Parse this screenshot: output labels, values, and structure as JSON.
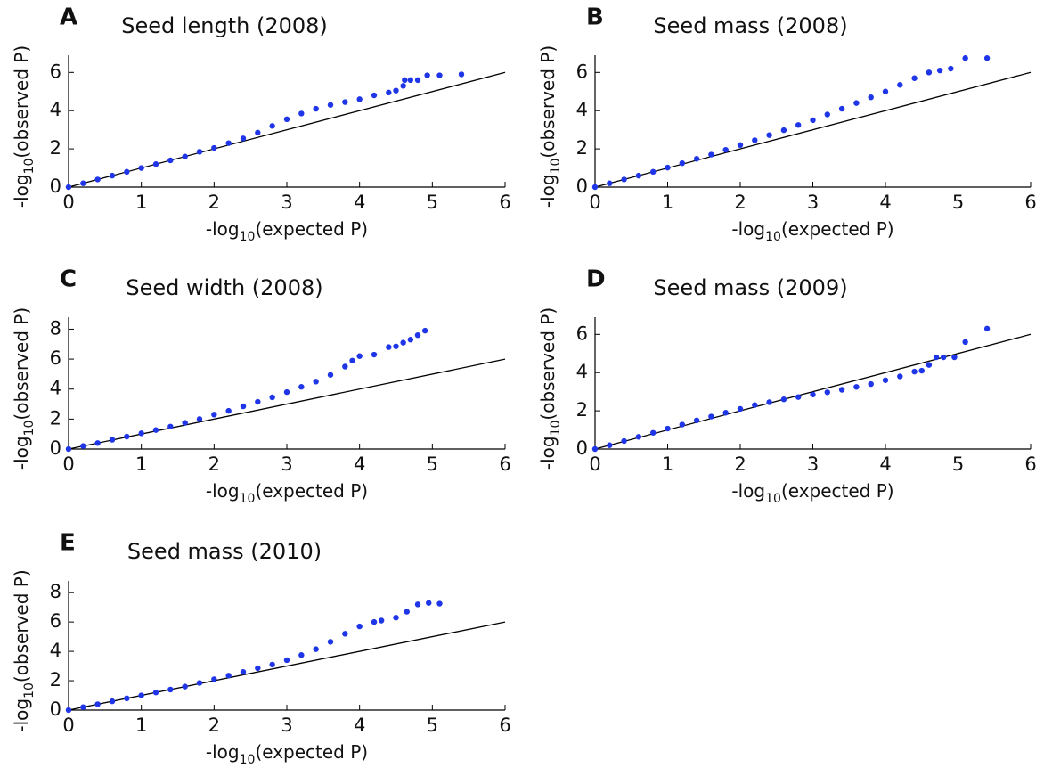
{
  "chart_data": [
    {
      "type": "scatter",
      "panel": "A",
      "title": "Seed length (2008)",
      "xlabel": [
        "-log",
        "10",
        "(expected P)"
      ],
      "ylabel": [
        "-log",
        "10",
        "(observed P)"
      ],
      "color": "#1f35e8",
      "identity_line": true,
      "xlim": [
        0,
        6
      ],
      "ylim": [
        0,
        6.9
      ],
      "xticks": [
        0,
        1,
        2,
        3,
        4,
        5,
        6
      ],
      "yticks": [
        0,
        2,
        4,
        6
      ],
      "x": [
        0,
        0.2,
        0.4,
        0.6,
        0.8,
        1,
        1.2,
        1.4,
        1.6,
        1.8,
        2,
        2.2,
        2.4,
        2.6,
        2.8,
        3,
        3.2,
        3.4,
        3.6,
        3.8,
        4,
        4.2,
        4.4,
        4.5,
        4.6,
        4.62,
        4.7,
        4.8,
        4.93,
        5.1,
        5.4
      ],
      "y": [
        0,
        0.2,
        0.4,
        0.6,
        0.8,
        1,
        1.2,
        1.4,
        1.6,
        1.85,
        2.05,
        2.3,
        2.55,
        2.85,
        3.2,
        3.55,
        3.85,
        4.1,
        4.3,
        4.45,
        4.6,
        4.8,
        4.95,
        5.05,
        5.3,
        5.6,
        5.6,
        5.6,
        5.85,
        5.85,
        5.9
      ]
    },
    {
      "type": "scatter",
      "panel": "B",
      "title": "Seed mass (2008)",
      "xlabel": [
        "-log",
        "10",
        "(expected P)"
      ],
      "ylabel": [
        "-log",
        "10",
        "(observed P)"
      ],
      "color": "#1f35e8",
      "identity_line": true,
      "xlim": [
        0,
        6
      ],
      "ylim": [
        0,
        6.9
      ],
      "xticks": [
        0,
        1,
        2,
        3,
        4,
        5,
        6
      ],
      "yticks": [
        0,
        2,
        4,
        6
      ],
      "x": [
        0,
        0.2,
        0.4,
        0.6,
        0.8,
        1,
        1.2,
        1.4,
        1.6,
        1.8,
        2,
        2.2,
        2.4,
        2.6,
        2.8,
        3,
        3.2,
        3.4,
        3.6,
        3.8,
        4,
        4.2,
        4.4,
        4.6,
        4.75,
        4.9,
        5.1,
        5.4
      ],
      "y": [
        0,
        0.2,
        0.4,
        0.6,
        0.8,
        1.02,
        1.25,
        1.48,
        1.7,
        1.95,
        2.2,
        2.45,
        2.72,
        2.98,
        3.25,
        3.5,
        3.8,
        4.1,
        4.4,
        4.7,
        5.0,
        5.35,
        5.7,
        6.0,
        6.1,
        6.2,
        6.75,
        6.75
      ]
    },
    {
      "type": "scatter",
      "panel": "C",
      "title": "Seed width (2008)",
      "xlabel": [
        "-log",
        "10",
        "(expected P)"
      ],
      "ylabel": [
        "-log",
        "10",
        "(observed P)"
      ],
      "color": "#1f35e8",
      "identity_line": true,
      "xlim": [
        0,
        6
      ],
      "ylim": [
        0,
        8.8
      ],
      "xticks": [
        0,
        1,
        2,
        3,
        4,
        5,
        6
      ],
      "yticks": [
        0,
        2,
        4,
        6,
        8
      ],
      "x": [
        0,
        0.2,
        0.4,
        0.6,
        0.8,
        1,
        1.2,
        1.4,
        1.6,
        1.8,
        2,
        2.2,
        2.4,
        2.6,
        2.8,
        3,
        3.2,
        3.4,
        3.6,
        3.8,
        3.9,
        4,
        4.2,
        4.4,
        4.5,
        4.6,
        4.7,
        4.8,
        4.9
      ],
      "y": [
        0,
        0.2,
        0.4,
        0.62,
        0.83,
        1.05,
        1.27,
        1.5,
        1.75,
        2.0,
        2.3,
        2.55,
        2.85,
        3.15,
        3.45,
        3.8,
        4.15,
        4.5,
        4.95,
        5.5,
        5.9,
        6.2,
        6.3,
        6.8,
        6.85,
        7.1,
        7.3,
        7.6,
        7.9
      ]
    },
    {
      "type": "scatter",
      "panel": "D",
      "title": "Seed mass (2009)",
      "xlabel": [
        "-log",
        "10",
        "(expected P)"
      ],
      "ylabel": [
        "-log",
        "10",
        "(observed P)"
      ],
      "color": "#1f35e8",
      "identity_line": true,
      "xlim": [
        0,
        6
      ],
      "ylim": [
        0,
        6.9
      ],
      "xticks": [
        0,
        1,
        2,
        3,
        4,
        5,
        6
      ],
      "yticks": [
        0,
        2,
        4,
        6
      ],
      "x": [
        0,
        0.2,
        0.4,
        0.6,
        0.8,
        1,
        1.2,
        1.4,
        1.6,
        1.8,
        2,
        2.2,
        2.4,
        2.6,
        2.8,
        3,
        3.2,
        3.4,
        3.6,
        3.8,
        4,
        4.2,
        4.4,
        4.5,
        4.6,
        4.7,
        4.8,
        4.95,
        5.1,
        5.4
      ],
      "y": [
        0,
        0.2,
        0.42,
        0.64,
        0.85,
        1.07,
        1.28,
        1.5,
        1.7,
        1.9,
        2.1,
        2.3,
        2.45,
        2.6,
        2.72,
        2.85,
        2.97,
        3.1,
        3.25,
        3.4,
        3.6,
        3.8,
        4.05,
        4.1,
        4.4,
        4.8,
        4.8,
        4.8,
        5.6,
        6.3
      ]
    },
    {
      "type": "scatter",
      "panel": "E",
      "title": "Seed mass (2010)",
      "xlabel": [
        "-log",
        "10",
        "(expected P)"
      ],
      "ylabel": [
        "-log",
        "10",
        "(observed P)"
      ],
      "color": "#1f35e8",
      "identity_line": true,
      "xlim": [
        0,
        6
      ],
      "ylim": [
        0,
        8.8
      ],
      "xticks": [
        0,
        1,
        2,
        3,
        4,
        5,
        6
      ],
      "yticks": [
        0,
        2,
        4,
        6,
        8
      ],
      "x": [
        0,
        0.2,
        0.4,
        0.6,
        0.8,
        1,
        1.2,
        1.4,
        1.6,
        1.8,
        2,
        2.2,
        2.4,
        2.6,
        2.8,
        3,
        3.2,
        3.4,
        3.6,
        3.8,
        4,
        4.2,
        4.3,
        4.5,
        4.65,
        4.8,
        4.95,
        5.1
      ],
      "y": [
        0,
        0.2,
        0.4,
        0.6,
        0.8,
        1.0,
        1.2,
        1.4,
        1.6,
        1.85,
        2.1,
        2.35,
        2.6,
        2.85,
        3.1,
        3.4,
        3.75,
        4.15,
        4.65,
        5.2,
        5.7,
        6.0,
        6.1,
        6.3,
        6.7,
        7.2,
        7.3,
        7.25
      ]
    }
  ]
}
